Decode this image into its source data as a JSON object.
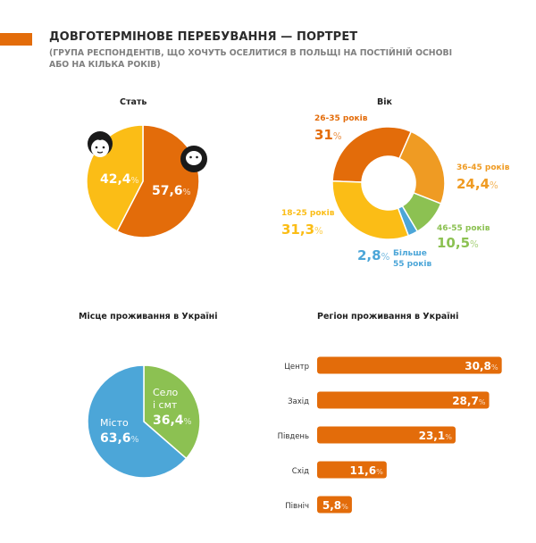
{
  "header": {
    "title": "ДОВГОТЕРМІНОВЕ ПЕРЕБУВАННЯ — ПОРТРЕТ",
    "subtitle_line1": "(ГРУПА РЕСПОНДЕНТІВ, ЩО ХОЧУТЬ ОСЕЛИТИСЯ В ПОЛЬЩІ НА ПОСТІЙНІЙ ОСНОВІ",
    "subtitle_line2": "АБО НА КІЛЬКА РОКІВ)"
  },
  "colors": {
    "orange": "#e36c0a",
    "orange_light": "#ef9b23",
    "yellow": "#fbbd16",
    "green": "#8cc152",
    "blue": "#4ca6d8",
    "accent": "#e36c0a"
  },
  "icons": [
    "woman-icon",
    "man-icon"
  ],
  "chart_data": [
    {
      "type": "pie",
      "title": "Стать",
      "slices": [
        {
          "label": "",
          "value": 57.6,
          "display": "57,6",
          "color": "#e36c0a"
        },
        {
          "label": "",
          "value": 42.4,
          "display": "42,4",
          "color": "#fbbd16"
        }
      ]
    },
    {
      "type": "pie",
      "title": "Вік",
      "donut": true,
      "slices": [
        {
          "label": "26-35 років",
          "value": 31,
          "display": "31",
          "color": "#e36c0a"
        },
        {
          "label": "36-45 років",
          "value": 24.4,
          "display": "24,4",
          "color": "#ef9b23"
        },
        {
          "label": "46-55 років",
          "value": 10.5,
          "display": "10,5",
          "color": "#8cc152"
        },
        {
          "label_lines": [
            "Більше",
            "55 років"
          ],
          "value": 2.8,
          "display": "2,8",
          "color": "#4ca6d8"
        },
        {
          "label": "18-25 років",
          "value": 31.3,
          "display": "31,3",
          "color": "#fbbd16"
        }
      ]
    },
    {
      "type": "pie",
      "title": "Місце проживання в Україні",
      "slices": [
        {
          "label_lines": [
            "Село",
            "і смт"
          ],
          "value": 36.4,
          "display": "36,4",
          "color": "#8cc152"
        },
        {
          "label_lines": [
            "Місто"
          ],
          "value": 63.6,
          "display": "63,6",
          "color": "#4ca6d8"
        }
      ]
    },
    {
      "type": "bar",
      "orientation": "horizontal",
      "title": "Регіон проживання в Україні",
      "categories": [
        "Центр",
        "Захід",
        "Південь",
        "Схід",
        "Північ"
      ],
      "values": [
        30.8,
        28.7,
        23.1,
        11.6,
        5.8
      ],
      "displays": [
        "30,8",
        "28,7",
        "23,1",
        "11,6",
        "5,8"
      ],
      "color": "#e36c0a",
      "xlim": [
        0,
        31
      ]
    }
  ],
  "percent_sign": "%"
}
